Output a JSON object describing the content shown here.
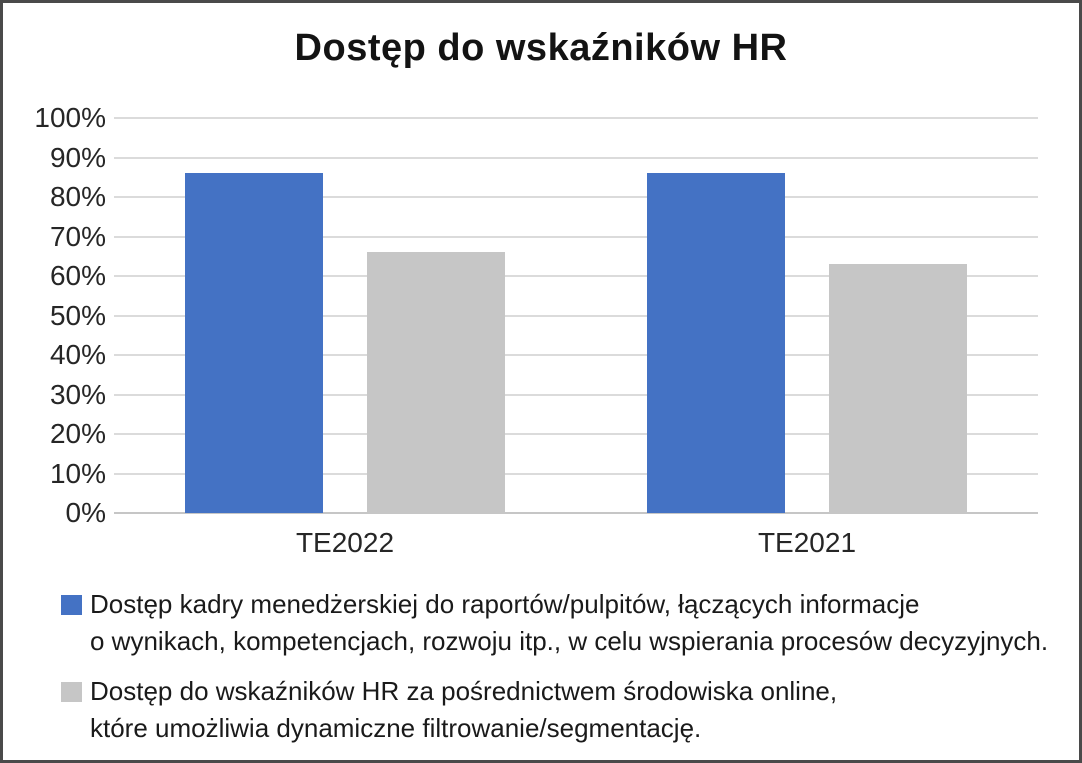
{
  "chart": {
    "title": "Dostęp do wskaźników HR"
  },
  "chart_data": {
    "type": "bar",
    "title": "Dostęp do wskaźników HR",
    "categories": [
      "TE2022",
      "TE2021"
    ],
    "series": [
      {
        "name": "Dostęp kadry menedżerskiej do raportów/pulpitów, łączących informacje o wynikach, kompetencjach, rozwoju itp., w celu wspierania procesów decyzyjnych.",
        "color": "#4472C4",
        "values": [
          86,
          86
        ]
      },
      {
        "name": "Dostęp do wskaźników HR za pośrednictwem środowiska online, które umożliwia dynamiczne filtrowanie/segmentację.",
        "color": "#C6C6C6",
        "values": [
          66,
          63
        ]
      }
    ],
    "xlabel": "",
    "ylabel": "",
    "ylim": [
      0,
      100
    ],
    "ytick_labels_top_to_bottom": [
      "100%",
      "90%",
      "80%",
      "70%",
      "60%",
      "50%",
      "40%",
      "30%",
      "20%",
      "10%",
      "0%"
    ],
    "grid": true,
    "gridline_color": "#DBDBDB",
    "legend_position": "bottom"
  },
  "legend": {
    "entries": [
      {
        "color": "#4472C4",
        "lines": [
          "Dostęp kadry menedżerskiej do raportów/pulpitów, łączących informacje",
          "o wynikach, kompetencjach, rozwoju itp., w celu wspierania procesów decyzyjnych."
        ]
      },
      {
        "color": "#C6C6C6",
        "lines": [
          "Dostęp do wskaźników HR za pośrednictwem środowiska online,",
          "które umożliwia dynamiczne filtrowanie/segmentację."
        ]
      }
    ]
  }
}
